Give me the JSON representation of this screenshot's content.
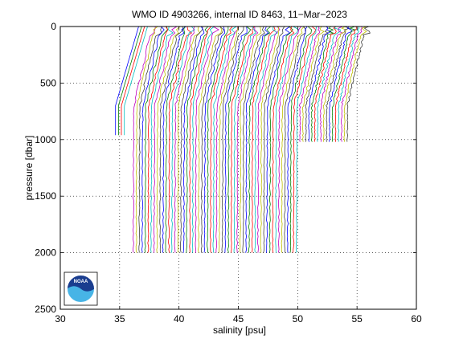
{
  "chart_data": {
    "type": "line",
    "title": "WMO ID 4903266, internal ID 8463, 11−Mar−2023",
    "xlabel": "salinity [psu]",
    "ylabel": "pressure [dbar]",
    "xlim": [
      30,
      60
    ],
    "ylim": [
      0,
      2500
    ],
    "y_reversed": true,
    "grid": true,
    "grid_style": "dotted",
    "xticks": [
      30,
      35,
      40,
      45,
      50,
      55,
      60
    ],
    "yticks": [
      0,
      500,
      1000,
      1500,
      2000,
      2500
    ],
    "profile_offset_per_cycle": 0.25,
    "series_colors": [
      "#0000ff",
      "#008000",
      "#ff0000",
      "#00bfbf",
      "#bf00bf",
      "#bfbf00",
      "#404040"
    ],
    "profile_groups": [
      {
        "first_offset_surface": 35.6,
        "surface_slope_base": 34.2,
        "surface_slope_end": 36.0,
        "count": 20,
        "max_pressure": 960,
        "late_max_pressure": 2000
      },
      {
        "first_offset_surface": 40.6,
        "surface_slope_base": 39.4,
        "surface_slope_end": 41.0,
        "count": 20,
        "max_pressure": 2000
      },
      {
        "first_offset_surface": 45.6,
        "surface_slope_base": 44.4,
        "surface_slope_end": 46.0,
        "count": 20,
        "max_pressure": 2000
      },
      {
        "first_offset_surface": 50.6,
        "surface_slope_base": 49.4,
        "surface_slope_end": 51.0,
        "count": 17,
        "max_pressure": 1020
      }
    ]
  },
  "logo": {
    "text": "NOAA"
  }
}
